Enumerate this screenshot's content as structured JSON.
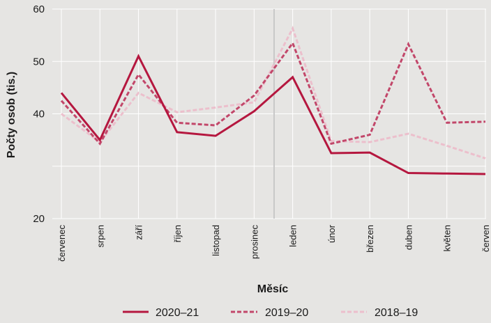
{
  "chart_data": {
    "type": "line",
    "xlabel": "Měsíc",
    "ylabel": "Počty osob (tis.)",
    "ylim": [
      20,
      60
    ],
    "yticks": [
      20,
      30,
      40,
      50,
      60
    ],
    "yticklabels": [
      "20",
      "",
      "40",
      "50",
      "60"
    ],
    "grid": true,
    "legend_position": "bottom",
    "categories": [
      "červenec",
      "srpen",
      "září",
      "říjen",
      "listopad",
      "prosinec",
      "leden",
      "únor",
      "březen",
      "duben",
      "květen",
      "červen"
    ],
    "series": [
      {
        "name": "2020–21",
        "style": "solid",
        "color": "#b5173f",
        "values": [
          44.0,
          35.0,
          51.0,
          36.5,
          35.8,
          40.5,
          47.0,
          32.5,
          32.6,
          28.7,
          28.6,
          28.5
        ]
      },
      {
        "name": "2019–20",
        "style": "dashed",
        "color": "#c2476a",
        "values": [
          42.5,
          34.3,
          47.5,
          38.3,
          37.8,
          43.5,
          53.5,
          34.3,
          36.0,
          53.3,
          38.3,
          38.5
        ]
      },
      {
        "name": "2018–19",
        "style": "dashed",
        "color": "#ecbfcc",
        "values": [
          40.0,
          34.6,
          44.0,
          40.3,
          41.2,
          42.2,
          56.3,
          34.8,
          34.6,
          36.2,
          33.9,
          31.5
        ]
      }
    ]
  }
}
